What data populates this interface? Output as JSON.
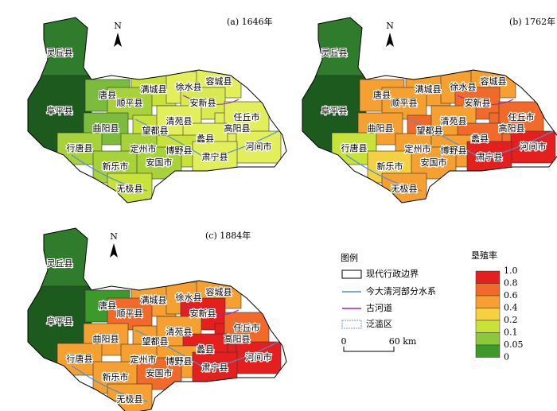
{
  "panels": [
    {
      "title": "(a) 1646年",
      "fills": [
        "#2f7d2c",
        "#1d5a1d",
        "#7cbc3c",
        "#c9e23a",
        "#a8d23a",
        "#e2ee5a",
        "#e2ee5a",
        "#d8ea50",
        "#7cbc3c",
        "#c9e23a",
        "#e2ee5a",
        "#e2ee5a",
        "#e2ee5a",
        "#a8d23a",
        "#a8d23a",
        "#e2ee5a",
        "#c9e23a",
        "#e2ee5a",
        "#a8d23a",
        "#a8d23a",
        "#e2ee5a",
        "#c9e23a"
      ]
    },
    {
      "title": "(b) 1762年",
      "fills": [
        "#2f7d2c",
        "#1d5a1d",
        "#f5a030",
        "#f5a030",
        "#f5a030",
        "#f5a030",
        "#f5a030",
        "#f26a2a",
        "#f5a030",
        "#f26a2a",
        "#f5a030",
        "#f26a2a",
        "#f26a2a",
        "#c9e23a",
        "#f5a030",
        "#f26a2a",
        "#f5a030",
        "#e51e1e",
        "#f5d040",
        "#f5a030",
        "#e51e1e",
        "#f5a030"
      ]
    },
    {
      "title": "(c) 1884年",
      "fills": [
        "#2f7d2c",
        "#1d5a1d",
        "#3c9a2a",
        "#f5a030",
        "#f26a2a",
        "#f5a030",
        "#f5a030",
        "#e51e1e",
        "#f5a030",
        "#f5a030",
        "#f5a030",
        "#e51e1e",
        "#f26a2a",
        "#f5a030",
        "#f5a030",
        "#e51e1e",
        "#f5a030",
        "#e51e1e",
        "#f5a030",
        "#f26a2a",
        "#e51e1e",
        "#f5a030"
      ]
    }
  ],
  "counties": [
    "灵丘县",
    "阜平县",
    "唐县",
    "满城县",
    "顺平县",
    "徐水县",
    "容城县",
    "安新县",
    "曲阳县",
    "望都县",
    "清苑县",
    "高阳县",
    "任丘市",
    "行唐县",
    "定州市",
    "蠡县",
    "博野县",
    "河间市",
    "新乐市",
    "安国市",
    "肃宁县",
    "无极县"
  ],
  "north": "N",
  "legend": {
    "title": "图例",
    "items": [
      "现代行政边界",
      "今大清河部分水系",
      "古河道",
      "泛滥区"
    ]
  },
  "scale": {
    "labels": [
      "0",
      "60 km"
    ]
  },
  "color_legend": {
    "title": "垦殖率",
    "labels": [
      "1.0",
      "0.8",
      "0.6",
      "0.4",
      "0.2",
      "0.1",
      "0.05",
      "0"
    ],
    "colors": [
      "#e51e1e",
      "#f26a2a",
      "#f5a030",
      "#f5d040",
      "#c9e23a",
      "#8cc83c",
      "#3c9a2a",
      "#1a5a1a"
    ]
  }
}
